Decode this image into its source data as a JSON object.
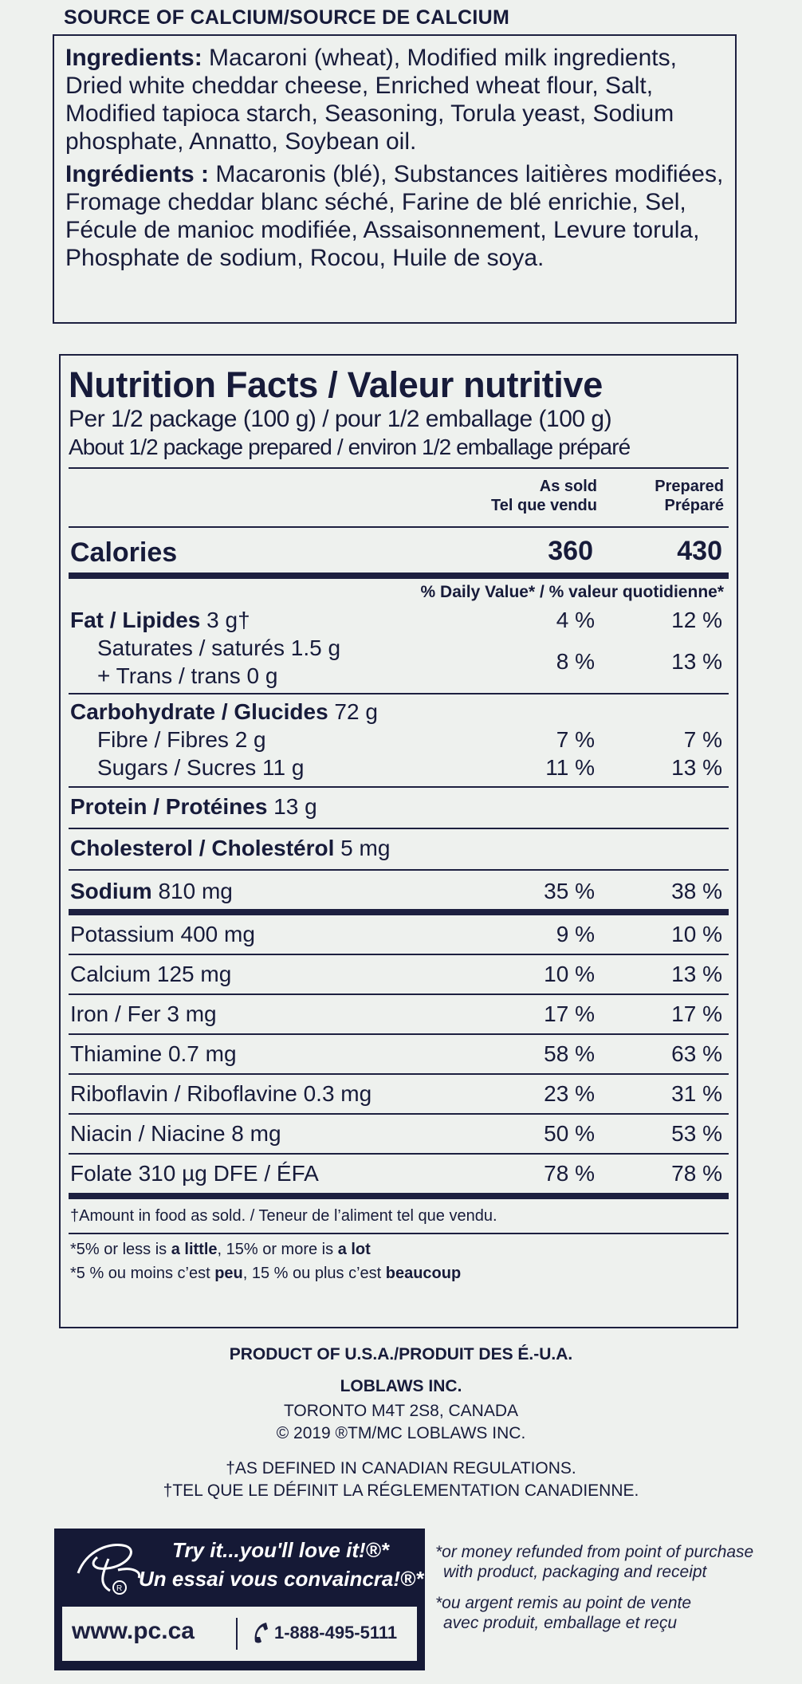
{
  "top_heading": "SOURCE OF CALCIUM/SOURCE DE CALCIUM",
  "ingredients": {
    "en_label": "Ingredients:",
    "en_text": " Macaroni (wheat), Modified milk ingredients, Dried white cheddar cheese, Enriched wheat flour, Salt, Modified tapioca starch, Seasoning, Torula yeast, Sodium phosphate, Annatto, Soybean oil.",
    "fr_label": "Ingrédients :",
    "fr_text": " Macaronis (blé), Substances laitières modifiées, Fromage cheddar blanc séché, Farine de blé enrichie, Sel, Fécule de manioc modifiée, Assaisonnement, Levure torula, Phosphate de sodium, Rocou, Huile de soya."
  },
  "nutrition": {
    "title": "Nutrition Facts / Valeur nutritive",
    "serving": "Per 1/2 package (100 g) / pour 1/2 emballage (100 g)",
    "serving_prepared": "About 1/2 package prepared / environ 1/2  emballage préparé",
    "col1_line1": "As sold",
    "col1_line2": "Tel que vendu",
    "col2_line1": "Prepared",
    "col2_line2": "Préparé",
    "calories_label": "Calories",
    "calories_sold": "360",
    "calories_prepared": "430",
    "dv_heading": "% Daily Value* / % valeur quotidienne*",
    "fat_label": "Fat / Lipides",
    "fat_amount": " 3 g†",
    "fat_sold": "4 %",
    "fat_prepared": "12 %",
    "sat_line": "Saturates / saturés 1.5 g",
    "trans_line": "+ Trans / trans 0 g",
    "sat_sold": "8 %",
    "sat_prepared": "13 %",
    "carb_label": "Carbohydrate / Glucides",
    "carb_amount": " 72 g",
    "fibre_line": "Fibre / Fibres 2 g",
    "fibre_sold": "7 %",
    "fibre_prepared": "7 %",
    "sugars_line": "Sugars / Sucres 11 g",
    "sugars_sold": "11 %",
    "sugars_prepared": "13 %",
    "protein_label": "Protein / Protéines",
    "protein_amount": " 13 g",
    "chol_label": "Cholesterol / Cholestérol",
    "chol_amount": " 5 mg",
    "sodium_label": "Sodium",
    "sodium_amount": " 810 mg",
    "sodium_sold": "35 %",
    "sodium_prepared": "38 %",
    "minerals": [
      {
        "name": "Potassium 400 mg",
        "sold": "9 %",
        "prepared": "10 %"
      },
      {
        "name": "Calcium 125 mg",
        "sold": "10 %",
        "prepared": "13 %"
      },
      {
        "name": "Iron / Fer 3 mg",
        "sold": "17 %",
        "prepared": "17 %"
      },
      {
        "name": "Thiamine 0.7 mg",
        "sold": "58 %",
        "prepared": "63 %"
      },
      {
        "name": "Riboflavin / Riboflavine 0.3 mg",
        "sold": "23 %",
        "prepared": "31 %"
      },
      {
        "name": "Niacin / Niacine 8 mg",
        "sold": "50 %",
        "prepared": "53 %"
      },
      {
        "name": "Folate 310 µg DFE / ÉFA",
        "sold": "78 %",
        "prepared": "78 %"
      }
    ],
    "footnote_dagger": "†Amount in food as sold. / Teneur de l’aliment tel que vendu.",
    "footnote_en_a": "*5% or less is ",
    "footnote_en_b": "a little",
    "footnote_en_c": ", 15% or more is ",
    "footnote_en_d": "a lot",
    "footnote_fr_a": "*5 % ou moins c’est ",
    "footnote_fr_b": "peu",
    "footnote_fr_c": ", 15 % ou plus c’est ",
    "footnote_fr_d": "beaucoup"
  },
  "origin": {
    "product": "PRODUCT OF U.S.A./PRODUIT DES É.-U.A.",
    "company": "LOBLAWS INC.",
    "address": "TORONTO M4T 2S8, CANADA",
    "copyright": "© 2019 ®TM/MC LOBLAWS INC.",
    "defined_en": "†AS DEFINED IN CANADIAN REGULATIONS.",
    "defined_fr": "†TEL QUE LE DÉFINIT LA RÉGLEMENTATION CANADIENNE."
  },
  "promo": {
    "line1": "Try it...you'll love it!®*",
    "line2": "Un essai vous convaincra!®*",
    "url": "www.pc.ca",
    "phone": "1-888-495-5111",
    "refund_en_1": "*or money refunded from point of purchase",
    "refund_en_2": "with product, packaging and receipt",
    "refund_fr_1": "*ou argent remis au point de vente",
    "refund_fr_2": "avec produit, emballage et reçu"
  }
}
